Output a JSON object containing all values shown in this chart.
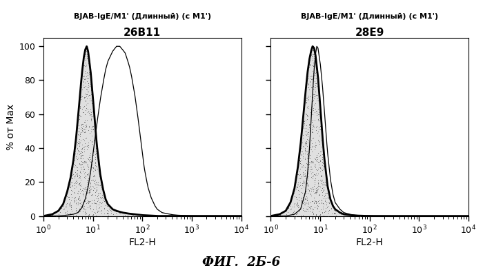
{
  "title_left": "BJAB-IgE/M1' (Длинный) (с M1')",
  "subtitle_left": "26B11",
  "title_right": "BJAB-IgE/M1' (Длинный) (с M1')",
  "subtitle_right": "28E9",
  "xlabel": "FL2-H",
  "ylabel": "% от Max",
  "figure_label": "ФИГ.  2Б-6",
  "xlim_log": [
    1,
    10000
  ],
  "ylim": [
    0,
    105
  ],
  "yticks": [
    0,
    20,
    40,
    60,
    80,
    100
  ],
  "background_color": "#ffffff",
  "left_filled_x": [
    1.0,
    1.5,
    2.0,
    2.5,
    3.0,
    3.5,
    4.0,
    4.5,
    5.0,
    5.5,
    6.0,
    6.5,
    7.0,
    7.5,
    8.0,
    9.0,
    10.0,
    11.0,
    12.0,
    14.0,
    16.0,
    18.0,
    20.0,
    25.0,
    30.0,
    40.0,
    50.0,
    70.0,
    100.0,
    200.0,
    500.0,
    10000.0
  ],
  "left_filled_y": [
    0,
    1,
    3,
    7,
    14,
    22,
    32,
    44,
    58,
    72,
    84,
    93,
    98,
    100,
    97,
    85,
    70,
    55,
    42,
    25,
    16,
    10,
    7,
    4,
    3,
    2,
    1.5,
    1,
    0.5,
    0,
    0,
    0
  ],
  "left_outline_x": [
    1.0,
    2.0,
    3.0,
    4.0,
    5.0,
    6.0,
    7.0,
    8.0,
    9.0,
    10.0,
    12.0,
    14.0,
    16.0,
    18.0,
    20.0,
    25.0,
    30.0,
    35.0,
    40.0,
    45.0,
    50.0,
    55.0,
    60.0,
    70.0,
    80.0,
    90.0,
    100.0,
    110.0,
    120.0,
    130.0,
    150.0,
    180.0,
    200.0,
    250.0,
    300.0,
    400.0,
    500.0,
    700.0,
    1000.0,
    10000.0
  ],
  "left_outline_y": [
    0,
    0,
    0.5,
    1,
    2,
    5,
    10,
    17,
    26,
    36,
    54,
    68,
    78,
    86,
    91,
    97,
    100,
    100,
    98,
    96,
    92,
    88,
    83,
    72,
    60,
    48,
    37,
    28,
    22,
    17,
    11,
    6,
    4,
    2,
    1.5,
    0.8,
    0.5,
    0.3,
    0.1,
    0
  ],
  "right_filled_x": [
    1.0,
    1.5,
    2.0,
    2.5,
    3.0,
    3.5,
    4.0,
    4.5,
    5.0,
    5.5,
    6.0,
    6.5,
    7.0,
    7.5,
    8.0,
    9.0,
    10.0,
    11.0,
    12.0,
    14.0,
    16.0,
    18.0,
    20.0,
    25.0,
    30.0,
    40.0,
    50.0,
    70.0,
    100.0,
    200.0,
    10000.0
  ],
  "right_filled_y": [
    0,
    1,
    3,
    8,
    16,
    28,
    42,
    58,
    72,
    84,
    92,
    97,
    100,
    99,
    95,
    82,
    65,
    48,
    35,
    18,
    10,
    6,
    4,
    2,
    1,
    0.5,
    0.3,
    0.1,
    0,
    0,
    0
  ],
  "right_outline_x": [
    1.0,
    2.0,
    3.0,
    4.0,
    5.0,
    5.5,
    6.0,
    6.5,
    7.0,
    7.5,
    8.0,
    8.5,
    9.0,
    10.0,
    11.0,
    12.0,
    13.0,
    14.0,
    16.0,
    18.0,
    20.0,
    25.0,
    30.0,
    40.0,
    50.0,
    70.0,
    100.0,
    200.0,
    10000.0
  ],
  "right_outline_y": [
    0,
    0,
    1,
    4,
    14,
    24,
    38,
    55,
    72,
    86,
    95,
    100,
    99,
    90,
    78,
    64,
    50,
    38,
    22,
    13,
    8,
    4,
    2,
    1,
    0.5,
    0.2,
    0.1,
    0,
    0
  ]
}
